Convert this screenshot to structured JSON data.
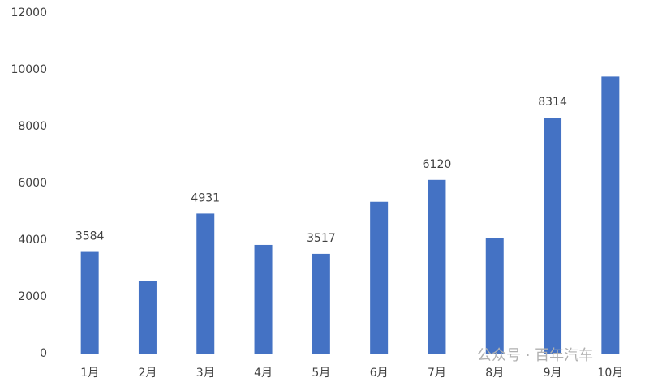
{
  "chart_data": {
    "type": "bar",
    "categories": [
      "1月",
      "2月",
      "3月",
      "4月",
      "5月",
      "6月",
      "7月",
      "8月",
      "9月",
      "10月"
    ],
    "values": [
      3584,
      2550,
      4931,
      3830,
      3517,
      5350,
      6120,
      4080,
      8314,
      9760
    ],
    "value_labels": [
      "3584",
      null,
      "4931",
      null,
      "3517",
      null,
      "6120",
      null,
      "8314",
      null
    ],
    "color": "#4472c4",
    "ylim": [
      0,
      12000
    ],
    "yticks": [
      0,
      2000,
      4000,
      6000,
      8000,
      10000,
      12000
    ],
    "grid": false,
    "watermark": "公众号 · 百年汽车"
  }
}
